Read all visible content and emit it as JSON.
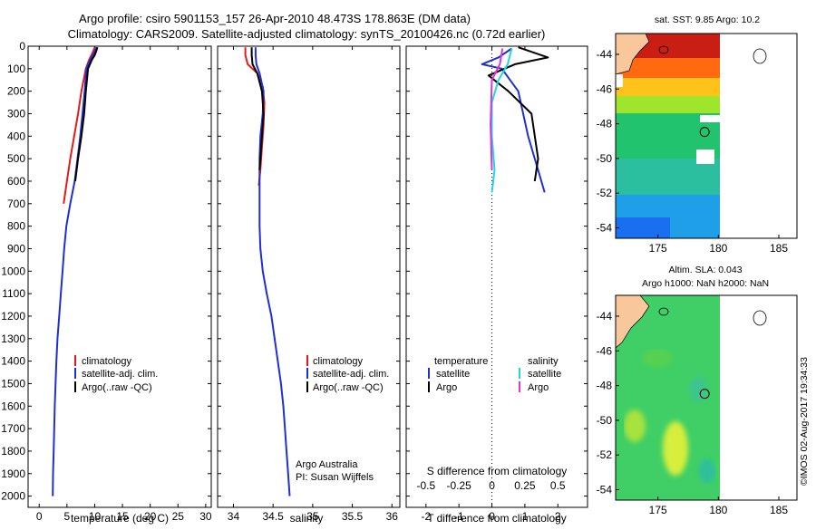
{
  "title_line1": "Argo profile: csiro 5901153_157 26-Apr-2010 48.473S 178.863E (DM data)",
  "title_line2": "Climatology: CARS2009. Satellite-adjusted climatology: synTS_20100426.nc (0.72d earlier)",
  "watermark": "©IMOS 02-Aug-2017 19:34:33",
  "credit": {
    "line1": "Argo Australia",
    "line2": "PI: Susan Wijffels"
  },
  "colors": {
    "clim": "#e41a1c",
    "sat": "#1f2fd6",
    "argo": "#000000",
    "sat_s": "#22d4e6",
    "argo_s": "#dd33dd"
  },
  "chart_data": [
    {
      "type": "line",
      "name": "temperature-profile",
      "xlabel": "temperature (deg C)",
      "ylabel": "",
      "xlim": [
        -2,
        31
      ],
      "ylim": [
        0,
        2050
      ],
      "xticks": [
        0,
        5,
        10,
        15,
        20,
        25,
        30
      ],
      "yticks": [
        0,
        100,
        200,
        300,
        400,
        500,
        600,
        700,
        800,
        900,
        1000,
        1100,
        1200,
        1300,
        1400,
        1500,
        1600,
        1700,
        1800,
        1900,
        2000
      ],
      "legend": [
        "climatology",
        "satellite-adj. clim.",
        "Argo(..raw -QC)"
      ],
      "legend_position": "lower-center",
      "series": [
        {
          "name": "climatology",
          "color": "#e41a1c",
          "points": [
            [
              10,
              5
            ],
            [
              9.6,
              30
            ],
            [
              9.0,
              60
            ],
            [
              8.4,
              100
            ],
            [
              7.6,
              200
            ],
            [
              7.0,
              300
            ],
            [
              6.3,
              400
            ],
            [
              5.6,
              500
            ],
            [
              5.0,
              600
            ],
            [
              4.4,
              700
            ]
          ]
        },
        {
          "name": "satellite-adj. clim.",
          "color": "#1f2fd6",
          "points": [
            [
              10.3,
              5
            ],
            [
              9.9,
              30
            ],
            [
              9.2,
              60
            ],
            [
              8.5,
              100
            ],
            [
              8.2,
              200
            ],
            [
              7.8,
              300
            ],
            [
              7.4,
              400
            ],
            [
              6.9,
              500
            ],
            [
              6.4,
              600
            ],
            [
              5.6,
              700
            ],
            [
              4.9,
              800
            ],
            [
              4.5,
              900
            ],
            [
              4.2,
              1000
            ],
            [
              3.9,
              1100
            ],
            [
              3.6,
              1200
            ],
            [
              3.3,
              1300
            ],
            [
              3.1,
              1400
            ],
            [
              2.95,
              1500
            ],
            [
              2.8,
              1600
            ],
            [
              2.7,
              1700
            ],
            [
              2.6,
              1800
            ],
            [
              2.5,
              1900
            ],
            [
              2.45,
              2000
            ]
          ]
        },
        {
          "name": "Argo(..raw -QC)",
          "color": "#000000",
          "points": [
            [
              10.5,
              5
            ],
            [
              10.3,
              20
            ],
            [
              10.0,
              40
            ],
            [
              9.5,
              60
            ],
            [
              8.8,
              100
            ],
            [
              8.4,
              200
            ],
            [
              8.1,
              300
            ],
            [
              7.6,
              400
            ],
            [
              7.0,
              500
            ],
            [
              6.5,
              600
            ]
          ]
        }
      ]
    },
    {
      "type": "line",
      "name": "salinity-profile",
      "xlabel": "salinity",
      "xlim": [
        33.8,
        36.1
      ],
      "ylim": [
        0,
        2050
      ],
      "xticks": [
        34,
        34.5,
        35,
        35.5,
        36
      ],
      "legend": [
        "climatology",
        "satellite-adj. clim.",
        "Argo(..raw -QC)"
      ],
      "legend_position": "lower-right",
      "series": [
        {
          "name": "climatology",
          "color": "#e41a1c",
          "points": [
            [
              34.15,
              5
            ],
            [
              34.15,
              40
            ],
            [
              34.18,
              80
            ],
            [
              34.3,
              120
            ],
            [
              34.37,
              180
            ],
            [
              34.39,
              250
            ],
            [
              34.38,
              350
            ],
            [
              34.36,
              450
            ],
            [
              34.34,
              550
            ],
            [
              34.32,
              620
            ]
          ]
        },
        {
          "name": "satellite-adj. clim.",
          "color": "#1f2fd6",
          "points": [
            [
              34.28,
              5
            ],
            [
              34.28,
              40
            ],
            [
              34.29,
              80
            ],
            [
              34.33,
              120
            ],
            [
              34.38,
              200
            ],
            [
              34.37,
              300
            ],
            [
              34.34,
              400
            ],
            [
              34.33,
              500
            ],
            [
              34.33,
              600
            ],
            [
              34.33,
              700
            ],
            [
              34.33,
              800
            ],
            [
              34.34,
              900
            ],
            [
              34.37,
              1000
            ],
            [
              34.42,
              1100
            ],
            [
              34.48,
              1200
            ],
            [
              34.52,
              1300
            ],
            [
              34.56,
              1400
            ],
            [
              34.6,
              1500
            ],
            [
              34.63,
              1600
            ],
            [
              34.65,
              1700
            ],
            [
              34.67,
              1800
            ],
            [
              34.69,
              1900
            ],
            [
              34.71,
              2000
            ]
          ]
        },
        {
          "name": "Argo(..raw -QC)",
          "color": "#000000",
          "points": [
            [
              34.23,
              5
            ],
            [
              34.23,
              40
            ],
            [
              34.24,
              80
            ],
            [
              34.3,
              120
            ],
            [
              34.36,
              200
            ],
            [
              34.38,
              300
            ],
            [
              34.36,
              400
            ],
            [
              34.34,
              500
            ],
            [
              34.33,
              550
            ]
          ]
        }
      ]
    },
    {
      "type": "line",
      "name": "difference-profile",
      "xlabel": "T difference from climatology",
      "x2label": "S difference from climatology",
      "xlim": [
        -2.6,
        2.9
      ],
      "x2lim": [
        -0.65,
        0.725
      ],
      "ylim": [
        0,
        2050
      ],
      "xticks": [
        -2,
        -1,
        0,
        1,
        2
      ],
      "x2ticks": [
        -0.5,
        -0.25,
        0,
        0.25,
        0.5
      ],
      "x2ticklabels": [
        "-0.5",
        "-0.25",
        "0",
        "0.25",
        "0.5"
      ],
      "legend_headers": [
        "temperature",
        "salinity"
      ],
      "legend": [
        "satellite",
        "Argo",
        "satellite",
        "Argo"
      ],
      "legend_position": "lower-center",
      "series": [
        {
          "name": "temperature satellite",
          "axis": "T",
          "color": "#1f2fd6",
          "points": [
            [
              0.6,
              10
            ],
            [
              0.2,
              50
            ],
            [
              -0.3,
              80
            ],
            [
              0.3,
              100
            ],
            [
              0.8,
              200
            ],
            [
              1.1,
              400
            ],
            [
              1.4,
              550
            ],
            [
              1.6,
              650
            ]
          ]
        },
        {
          "name": "temperature Argo",
          "axis": "T",
          "color": "#000000",
          "points": [
            [
              0.8,
              5
            ],
            [
              1.7,
              50
            ],
            [
              0.7,
              80
            ],
            [
              -0.1,
              130
            ],
            [
              0.5,
              200
            ],
            [
              1.2,
              300
            ],
            [
              1.4,
              500
            ],
            [
              1.3,
              600
            ]
          ]
        },
        {
          "name": "salinity satellite",
          "axis": "S",
          "color": "#22d4e6",
          "points": [
            [
              0.15,
              10
            ],
            [
              0.12,
              80
            ],
            [
              0.05,
              150
            ],
            [
              0.0,
              250
            ],
            [
              0.0,
              400
            ],
            [
              0.02,
              550
            ],
            [
              0.0,
              650
            ]
          ]
        },
        {
          "name": "salinity Argo",
          "axis": "S",
          "color": "#dd33dd",
          "points": [
            [
              0.08,
              10
            ],
            [
              0.06,
              80
            ],
            [
              0.0,
              150
            ],
            [
              -0.01,
              350
            ],
            [
              0.0,
              550
            ]
          ]
        }
      ]
    },
    {
      "type": "heatmap",
      "name": "sst-map",
      "title": "sat. SST: 9.85 Argo: 10.2",
      "xlim": [
        171.5,
        186.5
      ],
      "ylim": [
        -54.6,
        -42.8
      ],
      "xticks": [
        175,
        180,
        185
      ],
      "yticks": [
        -44,
        -46,
        -48,
        -50,
        -52,
        -54
      ],
      "data_extent_lon": 180
    },
    {
      "type": "heatmap",
      "name": "sla-map",
      "title_line1": "Altim. SLA: 0.043",
      "title_line2": "Argo h1000: NaN h2000: NaN",
      "xlim": [
        171.5,
        186.5
      ],
      "ylim": [
        -54.6,
        -42.8
      ],
      "xticks": [
        175,
        180,
        185
      ],
      "yticks": [
        -44,
        -46,
        -48,
        -50,
        -52,
        -54
      ],
      "data_extent_lon": 180
    }
  ]
}
